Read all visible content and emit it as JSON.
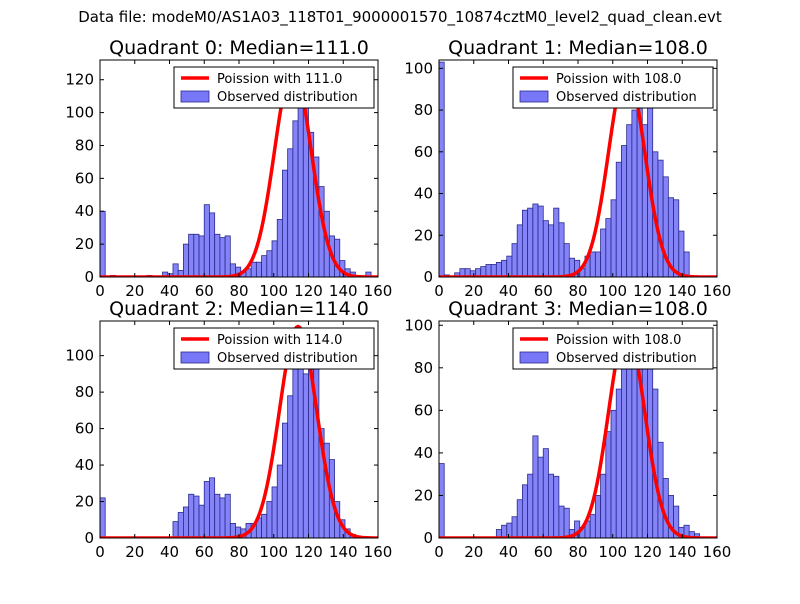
{
  "figure": {
    "suptitle": "Data file: modeM0/AS1A03_118T01_9000001570_10874cztM0_level2_quad_clean.evt",
    "colors": {
      "poisson": "#ff0000",
      "hist_fill": "#7777f7",
      "hist_edge": "#2a2a8c",
      "axes": "#000000",
      "legend_border": "#000000"
    }
  },
  "chart_data": [
    {
      "type": "bar",
      "title": "Quadrant 0: Median=111.0",
      "xlabel": "",
      "ylabel": "",
      "xlim": [
        0,
        160
      ],
      "ylim": [
        0,
        132
      ],
      "xticks": [
        0,
        20,
        40,
        60,
        80,
        100,
        120,
        140,
        160
      ],
      "yticks": [
        0,
        20,
        40,
        60,
        80,
        100,
        120
      ],
      "legend": {
        "placement": "top-right",
        "entries": [
          "Poission with 111.0",
          "Observed distribution"
        ]
      },
      "poisson_mean": 111.0,
      "poisson_peak": 127,
      "histogram": [
        {
          "x": 0,
          "width": 3,
          "value": 40
        },
        {
          "x": 6,
          "width": 3,
          "value": 1
        },
        {
          "x": 27,
          "width": 3,
          "value": 1
        },
        {
          "x": 36,
          "width": 3,
          "value": 3
        },
        {
          "x": 39,
          "width": 3,
          "value": 2
        },
        {
          "x": 42,
          "width": 3,
          "value": 8
        },
        {
          "x": 45,
          "width": 3,
          "value": 4
        },
        {
          "x": 48,
          "width": 3,
          "value": 20
        },
        {
          "x": 51,
          "width": 3,
          "value": 26
        },
        {
          "x": 54,
          "width": 3,
          "value": 26
        },
        {
          "x": 57,
          "width": 3,
          "value": 25
        },
        {
          "x": 60,
          "width": 3,
          "value": 44
        },
        {
          "x": 63,
          "width": 3,
          "value": 39
        },
        {
          "x": 66,
          "width": 3,
          "value": 26
        },
        {
          "x": 69,
          "width": 3,
          "value": 24
        },
        {
          "x": 72,
          "width": 3,
          "value": 25
        },
        {
          "x": 75,
          "width": 3,
          "value": 8
        },
        {
          "x": 78,
          "width": 3,
          "value": 6
        },
        {
          "x": 81,
          "width": 3,
          "value": 3
        },
        {
          "x": 84,
          "width": 3,
          "value": 5
        },
        {
          "x": 87,
          "width": 3,
          "value": 9
        },
        {
          "x": 90,
          "width": 3,
          "value": 9
        },
        {
          "x": 93,
          "width": 3,
          "value": 13
        },
        {
          "x": 96,
          "width": 3,
          "value": 16
        },
        {
          "x": 99,
          "width": 3,
          "value": 22
        },
        {
          "x": 102,
          "width": 3,
          "value": 35
        },
        {
          "x": 105,
          "width": 3,
          "value": 65
        },
        {
          "x": 108,
          "width": 3,
          "value": 78
        },
        {
          "x": 111,
          "width": 3,
          "value": 95
        },
        {
          "x": 114,
          "width": 3,
          "value": 110
        },
        {
          "x": 117,
          "width": 3,
          "value": 112
        },
        {
          "x": 120,
          "width": 3,
          "value": 88
        },
        {
          "x": 123,
          "width": 3,
          "value": 73
        },
        {
          "x": 126,
          "width": 3,
          "value": 55
        },
        {
          "x": 129,
          "width": 3,
          "value": 40
        },
        {
          "x": 132,
          "width": 3,
          "value": 25
        },
        {
          "x": 135,
          "width": 3,
          "value": 23
        },
        {
          "x": 138,
          "width": 3,
          "value": 10
        },
        {
          "x": 141,
          "width": 3,
          "value": 5
        },
        {
          "x": 144,
          "width": 3,
          "value": 3
        },
        {
          "x": 147,
          "width": 3,
          "value": 1
        },
        {
          "x": 153,
          "width": 3,
          "value": 3
        }
      ]
    },
    {
      "type": "bar",
      "title": "Quadrant 1: Median=108.0",
      "xlabel": "",
      "ylabel": "",
      "xlim": [
        0,
        160
      ],
      "ylim": [
        0,
        104
      ],
      "xticks": [
        0,
        20,
        40,
        60,
        80,
        100,
        120,
        140,
        160
      ],
      "yticks": [
        0,
        20,
        40,
        60,
        80,
        100
      ],
      "legend": {
        "placement": "top-right",
        "entries": [
          "Poission with 108.0",
          "Observed distribution"
        ]
      },
      "poisson_mean": 108.0,
      "poisson_peak": 99,
      "histogram": [
        {
          "x": 0,
          "width": 3,
          "value": 103
        },
        {
          "x": 3,
          "width": 3,
          "value": 1
        },
        {
          "x": 9,
          "width": 3,
          "value": 2
        },
        {
          "x": 12,
          "width": 3,
          "value": 4
        },
        {
          "x": 15,
          "width": 3,
          "value": 4
        },
        {
          "x": 18,
          "width": 3,
          "value": 3
        },
        {
          "x": 21,
          "width": 3,
          "value": 4
        },
        {
          "x": 24,
          "width": 3,
          "value": 5
        },
        {
          "x": 27,
          "width": 3,
          "value": 6
        },
        {
          "x": 30,
          "width": 3,
          "value": 6
        },
        {
          "x": 33,
          "width": 3,
          "value": 7
        },
        {
          "x": 36,
          "width": 3,
          "value": 8
        },
        {
          "x": 39,
          "width": 3,
          "value": 10
        },
        {
          "x": 42,
          "width": 3,
          "value": 16
        },
        {
          "x": 45,
          "width": 3,
          "value": 25
        },
        {
          "x": 48,
          "width": 3,
          "value": 32
        },
        {
          "x": 51,
          "width": 3,
          "value": 33
        },
        {
          "x": 54,
          "width": 3,
          "value": 35
        },
        {
          "x": 57,
          "width": 3,
          "value": 34
        },
        {
          "x": 60,
          "width": 3,
          "value": 27
        },
        {
          "x": 63,
          "width": 3,
          "value": 25
        },
        {
          "x": 66,
          "width": 3,
          "value": 33
        },
        {
          "x": 69,
          "width": 3,
          "value": 26
        },
        {
          "x": 72,
          "width": 3,
          "value": 16
        },
        {
          "x": 75,
          "width": 3,
          "value": 9
        },
        {
          "x": 78,
          "width": 3,
          "value": 8
        },
        {
          "x": 81,
          "width": 3,
          "value": 4
        },
        {
          "x": 84,
          "width": 3,
          "value": 10
        },
        {
          "x": 87,
          "width": 3,
          "value": 12
        },
        {
          "x": 90,
          "width": 3,
          "value": 12
        },
        {
          "x": 93,
          "width": 3,
          "value": 23
        },
        {
          "x": 96,
          "width": 3,
          "value": 28
        },
        {
          "x": 99,
          "width": 3,
          "value": 37
        },
        {
          "x": 102,
          "width": 3,
          "value": 55
        },
        {
          "x": 105,
          "width": 3,
          "value": 63
        },
        {
          "x": 108,
          "width": 3,
          "value": 73
        },
        {
          "x": 111,
          "width": 3,
          "value": 80
        },
        {
          "x": 114,
          "width": 3,
          "value": 90
        },
        {
          "x": 117,
          "width": 3,
          "value": 73
        },
        {
          "x": 120,
          "width": 3,
          "value": 83
        },
        {
          "x": 123,
          "width": 3,
          "value": 60
        },
        {
          "x": 126,
          "width": 3,
          "value": 56
        },
        {
          "x": 129,
          "width": 3,
          "value": 48
        },
        {
          "x": 132,
          "width": 3,
          "value": 38
        },
        {
          "x": 135,
          "width": 3,
          "value": 37
        },
        {
          "x": 138,
          "width": 3,
          "value": 22
        },
        {
          "x": 141,
          "width": 3,
          "value": 12
        }
      ]
    },
    {
      "type": "bar",
      "title": "Quadrant 2: Median=114.0",
      "xlabel": "",
      "ylabel": "",
      "xlim": [
        0,
        160
      ],
      "ylim": [
        0,
        119
      ],
      "xticks": [
        0,
        20,
        40,
        60,
        80,
        100,
        120,
        140,
        160
      ],
      "yticks": [
        0,
        20,
        40,
        60,
        80,
        100
      ],
      "legend": {
        "placement": "top-right",
        "entries": [
          "Poission with 114.0",
          "Observed distribution"
        ]
      },
      "poisson_mean": 114.0,
      "poisson_peak": 116,
      "histogram": [
        {
          "x": 0,
          "width": 3,
          "value": 22
        },
        {
          "x": 42,
          "width": 3,
          "value": 9
        },
        {
          "x": 45,
          "width": 3,
          "value": 14
        },
        {
          "x": 48,
          "width": 3,
          "value": 17
        },
        {
          "x": 51,
          "width": 3,
          "value": 24
        },
        {
          "x": 54,
          "width": 3,
          "value": 23
        },
        {
          "x": 57,
          "width": 3,
          "value": 18
        },
        {
          "x": 60,
          "width": 3,
          "value": 31
        },
        {
          "x": 63,
          "width": 3,
          "value": 33
        },
        {
          "x": 66,
          "width": 3,
          "value": 24
        },
        {
          "x": 69,
          "width": 3,
          "value": 22
        },
        {
          "x": 72,
          "width": 3,
          "value": 24
        },
        {
          "x": 75,
          "width": 3,
          "value": 8
        },
        {
          "x": 78,
          "width": 3,
          "value": 6
        },
        {
          "x": 81,
          "width": 3,
          "value": 5
        },
        {
          "x": 84,
          "width": 3,
          "value": 8
        },
        {
          "x": 87,
          "width": 3,
          "value": 8
        },
        {
          "x": 90,
          "width": 3,
          "value": 11
        },
        {
          "x": 93,
          "width": 3,
          "value": 13
        },
        {
          "x": 96,
          "width": 3,
          "value": 20
        },
        {
          "x": 99,
          "width": 3,
          "value": 28
        },
        {
          "x": 102,
          "width": 3,
          "value": 40
        },
        {
          "x": 105,
          "width": 3,
          "value": 63
        },
        {
          "x": 108,
          "width": 3,
          "value": 78
        },
        {
          "x": 111,
          "width": 3,
          "value": 96
        },
        {
          "x": 114,
          "width": 3,
          "value": 94
        },
        {
          "x": 117,
          "width": 3,
          "value": 90
        },
        {
          "x": 120,
          "width": 3,
          "value": 115
        },
        {
          "x": 123,
          "width": 3,
          "value": 93
        },
        {
          "x": 126,
          "width": 3,
          "value": 60
        },
        {
          "x": 129,
          "width": 3,
          "value": 52
        },
        {
          "x": 132,
          "width": 3,
          "value": 43
        },
        {
          "x": 135,
          "width": 3,
          "value": 20
        },
        {
          "x": 138,
          "width": 3,
          "value": 10
        },
        {
          "x": 141,
          "width": 3,
          "value": 5
        },
        {
          "x": 144,
          "width": 3,
          "value": 2
        }
      ]
    },
    {
      "type": "bar",
      "title": "Quadrant 3: Median=108.0",
      "xlabel": "",
      "ylabel": "",
      "xlim": [
        0,
        160
      ],
      "ylim": [
        0,
        102
      ],
      "xticks": [
        0,
        20,
        40,
        60,
        80,
        100,
        120,
        140,
        160
      ],
      "yticks": [
        0,
        20,
        40,
        60,
        80,
        100
      ],
      "legend": {
        "placement": "top-right",
        "entries": [
          "Poission with 108.0",
          "Observed distribution"
        ]
      },
      "poisson_mean": 108.0,
      "poisson_peak": 98,
      "histogram": [
        {
          "x": 0,
          "width": 3,
          "value": 35
        },
        {
          "x": 33,
          "width": 3,
          "value": 4
        },
        {
          "x": 36,
          "width": 3,
          "value": 6
        },
        {
          "x": 39,
          "width": 3,
          "value": 7
        },
        {
          "x": 42,
          "width": 3,
          "value": 10
        },
        {
          "x": 45,
          "width": 3,
          "value": 18
        },
        {
          "x": 48,
          "width": 3,
          "value": 25
        },
        {
          "x": 51,
          "width": 3,
          "value": 30
        },
        {
          "x": 54,
          "width": 3,
          "value": 48
        },
        {
          "x": 57,
          "width": 3,
          "value": 38
        },
        {
          "x": 60,
          "width": 3,
          "value": 42
        },
        {
          "x": 63,
          "width": 3,
          "value": 30
        },
        {
          "x": 66,
          "width": 3,
          "value": 29
        },
        {
          "x": 69,
          "width": 3,
          "value": 15
        },
        {
          "x": 72,
          "width": 3,
          "value": 14
        },
        {
          "x": 75,
          "width": 3,
          "value": 4
        },
        {
          "x": 78,
          "width": 3,
          "value": 8
        },
        {
          "x": 81,
          "width": 3,
          "value": 5
        },
        {
          "x": 84,
          "width": 3,
          "value": 8
        },
        {
          "x": 87,
          "width": 3,
          "value": 11
        },
        {
          "x": 90,
          "width": 3,
          "value": 20
        },
        {
          "x": 93,
          "width": 3,
          "value": 30
        },
        {
          "x": 96,
          "width": 3,
          "value": 50
        },
        {
          "x": 99,
          "width": 3,
          "value": 60
        },
        {
          "x": 102,
          "width": 3,
          "value": 70
        },
        {
          "x": 105,
          "width": 3,
          "value": 80
        },
        {
          "x": 108,
          "width": 3,
          "value": 96
        },
        {
          "x": 111,
          "width": 3,
          "value": 86
        },
        {
          "x": 114,
          "width": 3,
          "value": 95
        },
        {
          "x": 117,
          "width": 3,
          "value": 98
        },
        {
          "x": 120,
          "width": 3,
          "value": 80
        },
        {
          "x": 123,
          "width": 3,
          "value": 70
        },
        {
          "x": 126,
          "width": 3,
          "value": 45
        },
        {
          "x": 129,
          "width": 3,
          "value": 28
        },
        {
          "x": 132,
          "width": 3,
          "value": 20
        },
        {
          "x": 135,
          "width": 3,
          "value": 15
        },
        {
          "x": 138,
          "width": 3,
          "value": 5
        },
        {
          "x": 141,
          "width": 3,
          "value": 6
        },
        {
          "x": 144,
          "width": 3,
          "value": 3
        },
        {
          "x": 147,
          "width": 3,
          "value": 2
        }
      ]
    }
  ]
}
